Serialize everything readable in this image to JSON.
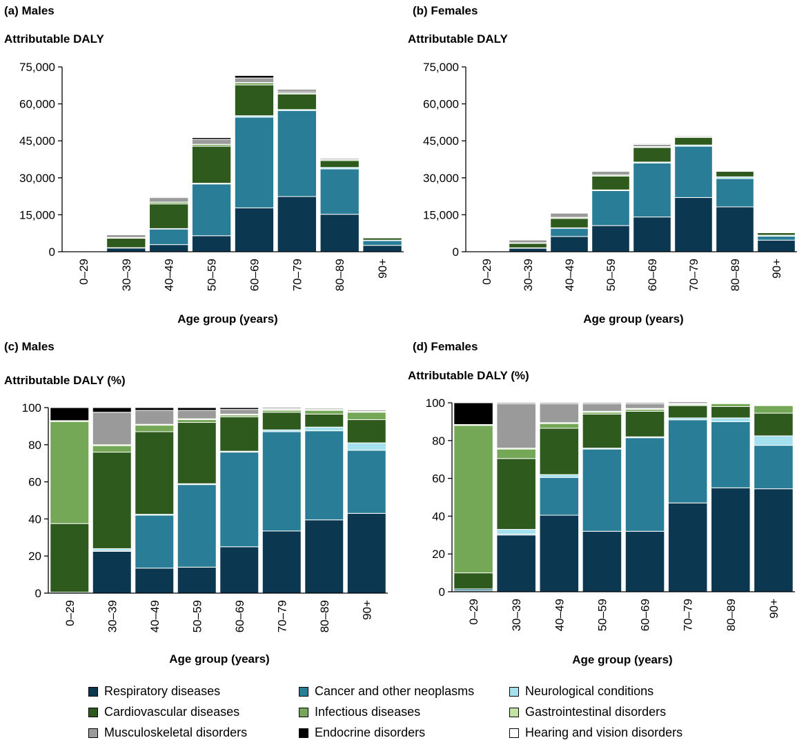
{
  "legend": {
    "items": [
      {
        "label": "Respiratory diseases",
        "color": "#0b3750"
      },
      {
        "label": "Cancer and other neoplasms",
        "color": "#2a7d96"
      },
      {
        "label": "Neurological conditions",
        "color": "#a5e0ef"
      },
      {
        "label": "Cardiovascular diseases",
        "color": "#2f5a1e"
      },
      {
        "label": "Infectious diseases",
        "color": "#74a857"
      },
      {
        "label": "Gastrointestinal disorders",
        "color": "#c3e3a4"
      },
      {
        "label": "Musculoskeletal disorders",
        "color": "#9a9a9a"
      },
      {
        "label": "Endocrine disorders",
        "color": "#000000"
      },
      {
        "label": "Hearing and vision disorders",
        "color": "#ffffff"
      }
    ]
  },
  "chart_data": [
    {
      "type": "bar",
      "stacked": true,
      "panel_title": "(a) Males",
      "ylabel": "Attributable DALY",
      "xlabel": "Age group (years)",
      "categories": [
        "0–29",
        "30–39",
        "40–49",
        "50–59",
        "60–69",
        "70–79",
        "80–89",
        "90+"
      ],
      "ylim": [
        0,
        75000
      ],
      "yticks": [
        0,
        15000,
        30000,
        45000,
        60000,
        75000
      ],
      "ytick_labels": [
        "0",
        "15,000",
        "30,000",
        "45,000",
        "60,000",
        "75,000"
      ],
      "series": [
        {
          "values": [
            0,
            1500,
            2900,
            6500,
            17800,
            22400,
            15200,
            2600
          ]
        },
        {
          "values": [
            0,
            100,
            6300,
            21000,
            36800,
            34900,
            18400,
            1900
          ]
        },
        {
          "values": [
            0,
            50,
            200,
            300,
            600,
            400,
            600,
            200
          ]
        },
        {
          "values": [
            0,
            3800,
            10000,
            15000,
            12500,
            6300,
            2800,
            900
          ]
        },
        {
          "values": [
            0,
            300,
            700,
            700,
            900,
            400,
            400,
            300
          ]
        },
        {
          "values": [
            0,
            50,
            50,
            100,
            100,
            50,
            50,
            30
          ]
        },
        {
          "values": [
            0,
            1100,
            1800,
            2000,
            1800,
            800,
            500,
            100
          ]
        },
        {
          "values": [
            0,
            200,
            300,
            700,
            1000,
            500,
            200,
            30
          ]
        },
        {
          "values": [
            0,
            0,
            0,
            0,
            0,
            0,
            0,
            0
          ]
        }
      ]
    },
    {
      "type": "bar",
      "stacked": true,
      "panel_title": "(b) Females",
      "ylabel": "Attributable DALY",
      "xlabel": "Age group (years)",
      "categories": [
        "0–29",
        "30–39",
        "40–49",
        "50–59",
        "60–69",
        "70–79",
        "80–89",
        "90+"
      ],
      "ylim": [
        0,
        75000
      ],
      "yticks": [
        0,
        15000,
        30000,
        45000,
        60000,
        75000
      ],
      "ytick_labels": [
        "0",
        "15,000",
        "30,000",
        "45,000",
        "60,000",
        "75,000"
      ],
      "series": [
        {
          "values": [
            0,
            1400,
            6200,
            10600,
            14100,
            22000,
            18200,
            4700
          ]
        },
        {
          "values": [
            0,
            100,
            3300,
            14200,
            21900,
            20800,
            11500,
            1600
          ]
        },
        {
          "values": [
            0,
            100,
            200,
            300,
            400,
            500,
            700,
            400
          ]
        },
        {
          "values": [
            0,
            1800,
            3800,
            5600,
            5900,
            3100,
            2200,
            1000
          ]
        },
        {
          "values": [
            0,
            200,
            400,
            400,
            300,
            200,
            200,
            300
          ]
        },
        {
          "values": [
            0,
            50,
            50,
            50,
            50,
            50,
            50,
            30
          ]
        },
        {
          "values": [
            0,
            1100,
            1700,
            1500,
            900,
            400,
            300,
            50
          ]
        },
        {
          "values": [
            0,
            50,
            100,
            100,
            300,
            200,
            100,
            20
          ]
        },
        {
          "values": [
            0,
            0,
            0,
            0,
            0,
            0,
            0,
            0
          ]
        }
      ]
    },
    {
      "type": "bar",
      "stacked": true,
      "panel_title": "(c) Males",
      "ylabel": "Attributable DALY (%)",
      "xlabel": "Age group (years)",
      "categories": [
        "0–29",
        "30–39",
        "40–49",
        "50–59",
        "60–69",
        "70–79",
        "80–89",
        "90+"
      ],
      "ylim": [
        0,
        100
      ],
      "yticks": [
        0,
        20,
        40,
        60,
        80,
        100
      ],
      "ytick_labels": [
        "0",
        "20",
        "40",
        "60",
        "80",
        "100"
      ],
      "series": [
        {
          "values": [
            0.5,
            22.5,
            13.5,
            14,
            25,
            33.5,
            39.5,
            43
          ]
        },
        {
          "values": [
            0,
            0.5,
            28.5,
            44.5,
            51,
            53.5,
            48,
            34
          ]
        },
        {
          "values": [
            0,
            1,
            0.5,
            0.5,
            0.5,
            1,
            2,
            4
          ]
        },
        {
          "values": [
            37,
            52,
            44.5,
            33,
            18.5,
            9.5,
            7,
            12.5
          ]
        },
        {
          "values": [
            55,
            3.5,
            3.5,
            1.5,
            1,
            1,
            2,
            4
          ]
        },
        {
          "values": [
            0.5,
            0.5,
            0.5,
            0.5,
            0.5,
            0.5,
            0.5,
            0.5
          ]
        },
        {
          "values": [
            0,
            17.5,
            7.5,
            4.5,
            2.5,
            0.5,
            0.7,
            0.7
          ]
        },
        {
          "values": [
            7,
            2.5,
            1.5,
            1.5,
            1,
            0.5,
            0.3,
            0.3
          ]
        },
        {
          "values": [
            0,
            0,
            0,
            0,
            0,
            0,
            0,
            1
          ]
        }
      ]
    },
    {
      "type": "bar",
      "stacked": true,
      "panel_title": "(d) Females",
      "ylabel": "Attributable DALY (%)",
      "xlabel": "Age group (years)",
      "categories": [
        "0–29",
        "30–39",
        "40–49",
        "50–59",
        "60–69",
        "70–79",
        "80–89",
        "90+"
      ],
      "ylim": [
        0,
        100
      ],
      "yticks": [
        0,
        20,
        40,
        60,
        80,
        100
      ],
      "ytick_labels": [
        "0",
        "20",
        "40",
        "60",
        "80",
        "100"
      ],
      "series": [
        {
          "values": [
            0.5,
            30,
            40.5,
            32,
            32,
            47,
            55,
            54.5
          ]
        },
        {
          "values": [
            1,
            0.5,
            20,
            43.5,
            49.5,
            44,
            35,
            23
          ]
        },
        {
          "values": [
            0,
            2.5,
            1.5,
            0.5,
            0.5,
            1,
            2,
            5
          ]
        },
        {
          "values": [
            8.5,
            37.5,
            24.5,
            18,
            13.5,
            6.5,
            6,
            12
          ]
        },
        {
          "values": [
            78,
            5,
            2.5,
            1,
            1,
            0.5,
            1.5,
            4
          ]
        },
        {
          "values": [
            0.5,
            0.5,
            0.5,
            0.5,
            0.5,
            0.5,
            0.5,
            0.3
          ]
        },
        {
          "values": [
            0,
            23.5,
            10,
            4,
            2.5,
            0.5,
            0,
            0.1
          ]
        },
        {
          "values": [
            11.5,
            0.5,
            0.5,
            0.5,
            0.5,
            0.5,
            0,
            0.1
          ]
        },
        {
          "values": [
            0,
            0,
            0,
            0,
            0,
            0,
            0,
            0
          ]
        }
      ]
    }
  ]
}
